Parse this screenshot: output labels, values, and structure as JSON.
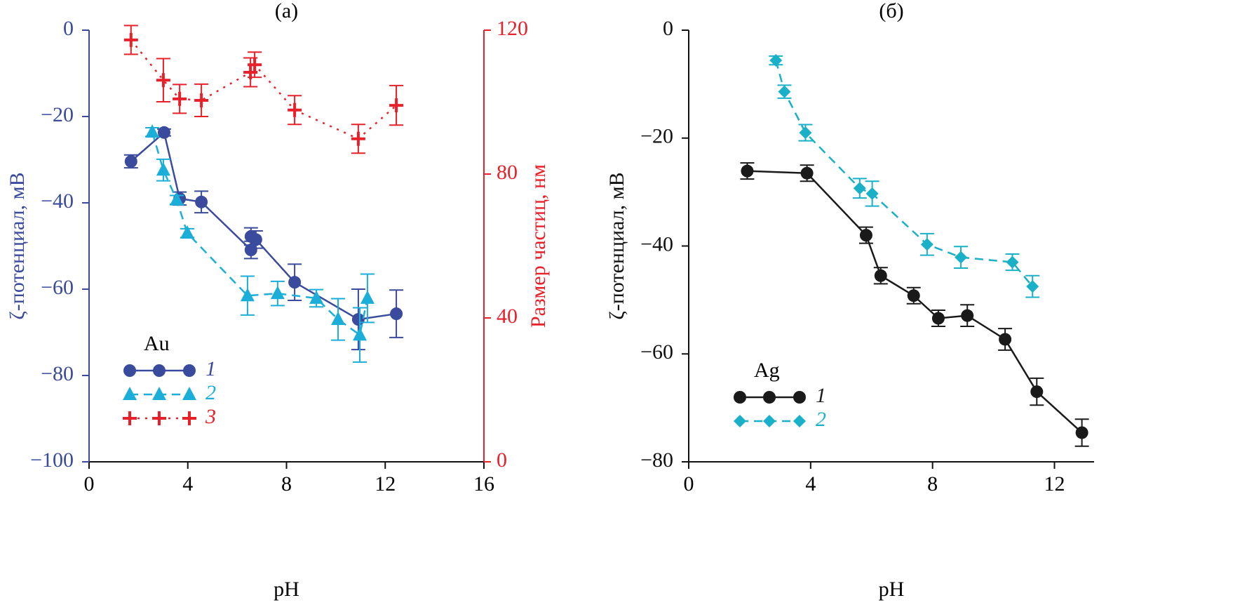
{
  "chart_data": [
    {
      "type": "line",
      "title": "(a)",
      "x_label": "pH",
      "y_label": "ζ-потенциал, мВ",
      "y2_label": "Размер частиц, нм",
      "y_axis_color": "#3a4a9c",
      "y2_axis_color": "#e8202a",
      "xlim": [
        0,
        16
      ],
      "xticks": [
        0,
        4,
        8,
        12,
        16
      ],
      "ylim": [
        -100,
        0
      ],
      "yticks": [
        0,
        {
          "value": -20,
          "label": "−20"
        },
        {
          "value": -40,
          "label": "−40"
        },
        {
          "value": -60,
          "label": "−60"
        },
        {
          "value": -80,
          "label": "−80"
        },
        {
          "value": -100,
          "label": "−100"
        }
      ],
      "y2lim": [
        0,
        120
      ],
      "y2ticks": [
        0,
        40,
        80,
        120
      ],
      "legend_title": "Au",
      "legend": "lower left",
      "series": [
        {
          "name": "1",
          "color": "#3a4a9c",
          "marker": "circle",
          "line_style": "solid",
          "x": [
            1.7,
            3.04,
            3.67,
            4.55,
            6.56,
            6.56,
            6.76,
            8.33,
            10.91,
            12.45
          ],
          "values": [
            -30.4,
            -23.7,
            -39.0,
            -39.8,
            -50.9,
            -47.8,
            -48.5,
            -58.4,
            -67.0,
            -65.7
          ],
          "errors": [
            1.5,
            0.8,
            1.5,
            2.5,
            2.0,
            2.0,
            2.0,
            4.2,
            7.0,
            5.5
          ]
        },
        {
          "name": "2",
          "color": "#1aaed8",
          "marker": "triangle",
          "line_style": "dashed",
          "x": [
            2.56,
            3.01,
            3.55,
            3.98,
            6.42,
            7.64,
            9.21,
            10.09,
            10.97,
            11.28
          ],
          "values": [
            -23.6,
            -32.4,
            -39.3,
            -47.0,
            -61.5,
            -61.0,
            -62.1,
            -67.0,
            -70.6,
            -62.1
          ],
          "errors": [
            1.0,
            2.5,
            1.0,
            1.0,
            4.5,
            2.8,
            2.0,
            4.8,
            6.3,
            5.6
          ]
        },
        {
          "name": "3",
          "color": "#e8202a",
          "marker": "plus",
          "line_style": "dotted",
          "axis": "y2",
          "x": [
            1.7,
            3.01,
            3.67,
            4.55,
            6.54,
            6.71,
            8.33,
            10.91,
            12.45
          ],
          "values": [
            117.3,
            106.1,
            100.9,
            100.5,
            108.3,
            110.4,
            97.8,
            89.8,
            99.1
          ],
          "errors": [
            4.0,
            6.0,
            4.0,
            4.5,
            4.0,
            3.5,
            4.0,
            4.0,
            5.5
          ]
        }
      ]
    },
    {
      "type": "line",
      "title": "(б)",
      "x_label": "pH",
      "y_label": "ζ-потенциал, мВ",
      "y_axis_color": "#111111",
      "xlim": [
        0,
        13.3
      ],
      "xticks": [
        0,
        4,
        8,
        12
      ],
      "ylim": [
        -80,
        0
      ],
      "yticks": [
        0,
        {
          "value": -20,
          "label": "−20"
        },
        {
          "value": -40,
          "label": "−40"
        },
        {
          "value": -60,
          "label": "−60"
        },
        {
          "value": -80,
          "label": "−80"
        }
      ],
      "legend_title": "Ag",
      "legend": "lower left",
      "series": [
        {
          "name": "1",
          "color": "#1a1a1a",
          "marker": "circle",
          "line_style": "solid",
          "x": [
            1.92,
            3.88,
            5.82,
            6.3,
            7.38,
            8.19,
            9.14,
            10.38,
            11.42,
            12.9
          ],
          "values": [
            -26.1,
            -26.5,
            -38.0,
            -45.5,
            -49.2,
            -53.4,
            -52.9,
            -57.3,
            -67.0,
            -74.6
          ],
          "errors": [
            1.5,
            1.5,
            1.5,
            1.5,
            1.5,
            1.5,
            2.0,
            2.0,
            2.5,
            2.5
          ]
        },
        {
          "name": "2",
          "color": "#1ab0c8",
          "marker": "diamond",
          "line_style": "dashed",
          "x": [
            2.86,
            3.14,
            3.83,
            5.61,
            6.02,
            7.82,
            8.93,
            10.62,
            11.28
          ],
          "values": [
            -5.6,
            -11.4,
            -19.0,
            -29.3,
            -30.3,
            -39.7,
            -42.1,
            -43.0,
            -47.5
          ],
          "errors": [
            0.8,
            1.2,
            1.5,
            1.8,
            2.3,
            2.0,
            2.0,
            1.5,
            2.0
          ]
        }
      ]
    }
  ]
}
